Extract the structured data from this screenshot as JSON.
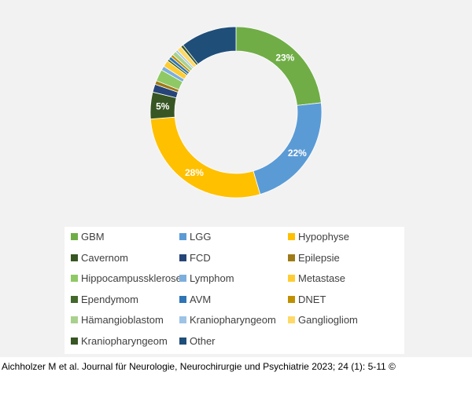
{
  "chart_data": {
    "type": "pie",
    "variant": "donut",
    "title": "",
    "legend_position": "bottom",
    "categories": [
      "GBM",
      "LGG",
      "Hypophyse",
      "Cavernom",
      "FCD",
      "Epilepsie",
      "Hippocampussklerose",
      "Lymphom",
      "Metastase",
      "Ependymom",
      "AVM",
      "DNET",
      "Hämangioblastom",
      "Kraniopharyngeom",
      "Gangliogliom",
      "Kraniopharyngeom",
      "Other"
    ],
    "values": [
      23,
      22,
      28,
      5,
      1.5,
      0.7,
      2.2,
      0.8,
      1.2,
      0.4,
      0.6,
      0.5,
      0.8,
      0.4,
      0.9,
      0.5,
      10.5
    ],
    "data_labels": [
      "23%",
      "22%",
      "28%",
      "5%",
      "",
      "",
      "",
      "",
      "",
      "",
      "",
      "",
      "",
      "",
      "",
      "",
      ""
    ],
    "colors": [
      "#70ad47",
      "#5b9bd5",
      "#ffc000",
      "#375623",
      "#264478",
      "#9e7b16",
      "#8fc965",
      "#7cafdd",
      "#ffcd33",
      "#43682b",
      "#2e75b6",
      "#bf9000",
      "#a9d18e",
      "#9dc3e6",
      "#ffd966",
      "#375623",
      "#1f4e79"
    ]
  },
  "caption": "Aichholzer M et al. Journal für Neurologie, Neurochirurgie und Psychiatrie 2023; 24 (1): 5-11 ©"
}
